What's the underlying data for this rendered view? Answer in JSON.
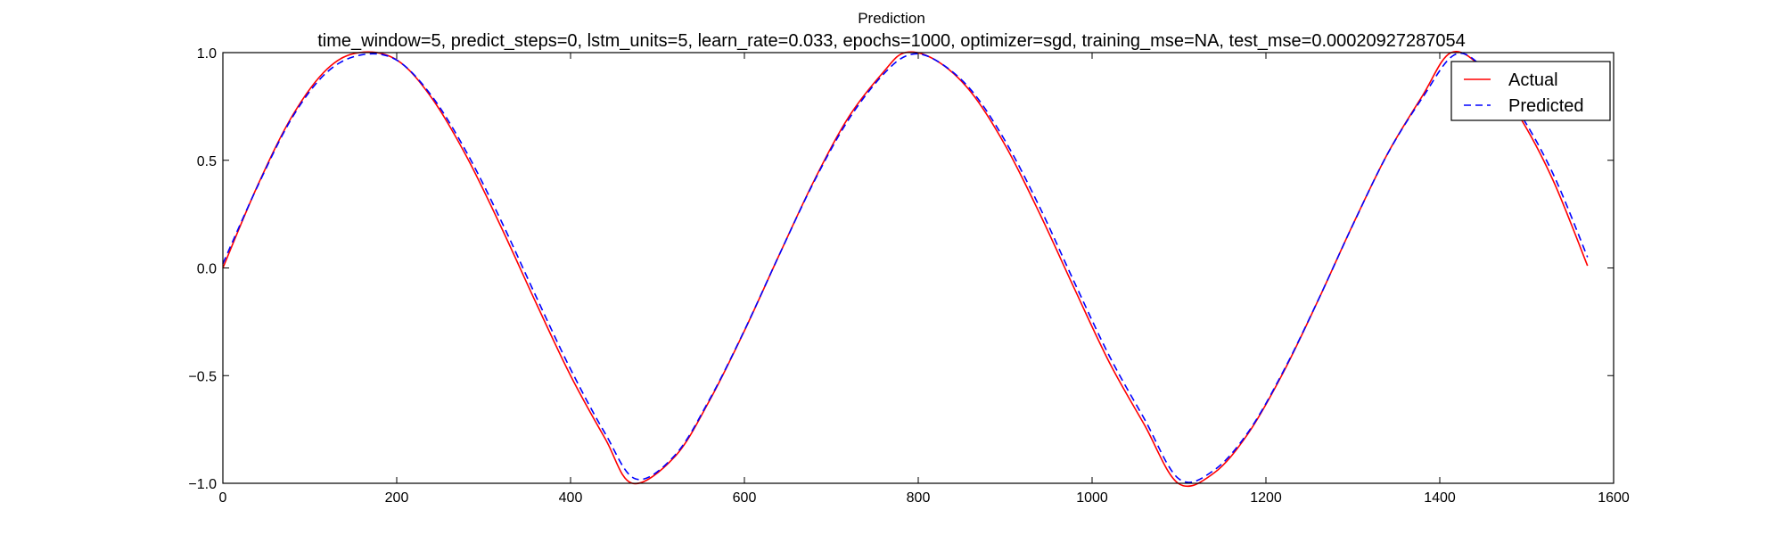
{
  "chart_data": {
    "type": "line",
    "title": "Prediction",
    "subtitle": "time_window=5, predict_steps=0, lstm_units=5, learn_rate=0.033, epochs=1000, optimizer=sgd, training_mse=NA, test_mse=0.00020927287054",
    "xlabel": "",
    "ylabel": "",
    "xlim": [
      0,
      1600
    ],
    "ylim": [
      -1.0,
      1.0
    ],
    "xticks": [
      0,
      200,
      400,
      600,
      800,
      1000,
      1200,
      1400,
      1600
    ],
    "yticks": [
      -1.0,
      -0.5,
      0.0,
      0.5,
      1.0
    ],
    "xtick_labels": [
      "0",
      "200",
      "400",
      "600",
      "800",
      "1000",
      "1200",
      "1400",
      "1600"
    ],
    "ytick_labels": [
      "−1.0",
      "−0.5",
      "0.0",
      "0.5",
      "1.0"
    ],
    "grid": false,
    "legend_position": "top-right",
    "series": [
      {
        "name": "Actual",
        "color": "#ff0000",
        "style": "solid",
        "x": [
          0,
          40,
          80,
          120,
          157,
          200,
          240,
          280,
          320,
          360,
          400,
          440,
          471,
          520,
          560,
          600,
          640,
          680,
          720,
          760,
          785,
          820,
          860,
          900,
          940,
          980,
          1020,
          1060,
          1099,
          1140,
          1180,
          1220,
          1260,
          1300,
          1340,
          1380,
          1413,
          1450,
          1490,
          1530,
          1570
        ],
        "y": [
          0.0,
          0.383,
          0.707,
          0.924,
          1.0,
          0.966,
          0.791,
          0.52,
          0.191,
          -0.16,
          -0.5,
          -0.794,
          -1.0,
          -0.876,
          -0.615,
          -0.292,
          0.06,
          0.404,
          0.701,
          0.91,
          1.0,
          0.965,
          0.82,
          0.57,
          0.25,
          -0.099,
          -0.44,
          -0.727,
          -1.0,
          -0.953,
          -0.766,
          -0.485,
          -0.151,
          0.201,
          0.531,
          0.799,
          1.0,
          0.925,
          0.714,
          0.41,
          0.01
        ]
      },
      {
        "name": "Predicted",
        "color": "#0000ff",
        "style": "dashed",
        "x": [
          0,
          40,
          80,
          120,
          160,
          200,
          240,
          280,
          320,
          360,
          400,
          440,
          475,
          520,
          560,
          600,
          640,
          680,
          720,
          760,
          790,
          820,
          860,
          900,
          940,
          980,
          1020,
          1060,
          1100,
          1140,
          1180,
          1220,
          1260,
          1300,
          1340,
          1380,
          1417,
          1450,
          1490,
          1530,
          1570
        ],
        "y": [
          0.02,
          0.38,
          0.7,
          0.91,
          0.99,
          0.965,
          0.8,
          0.54,
          0.22,
          -0.13,
          -0.47,
          -0.77,
          -0.98,
          -0.87,
          -0.61,
          -0.29,
          0.06,
          0.4,
          0.69,
          0.9,
          0.99,
          0.965,
          0.83,
          0.59,
          0.28,
          -0.07,
          -0.41,
          -0.7,
          -0.98,
          -0.94,
          -0.76,
          -0.48,
          -0.15,
          0.2,
          0.53,
          0.79,
          0.99,
          0.93,
          0.73,
          0.44,
          0.05
        ]
      }
    ]
  }
}
